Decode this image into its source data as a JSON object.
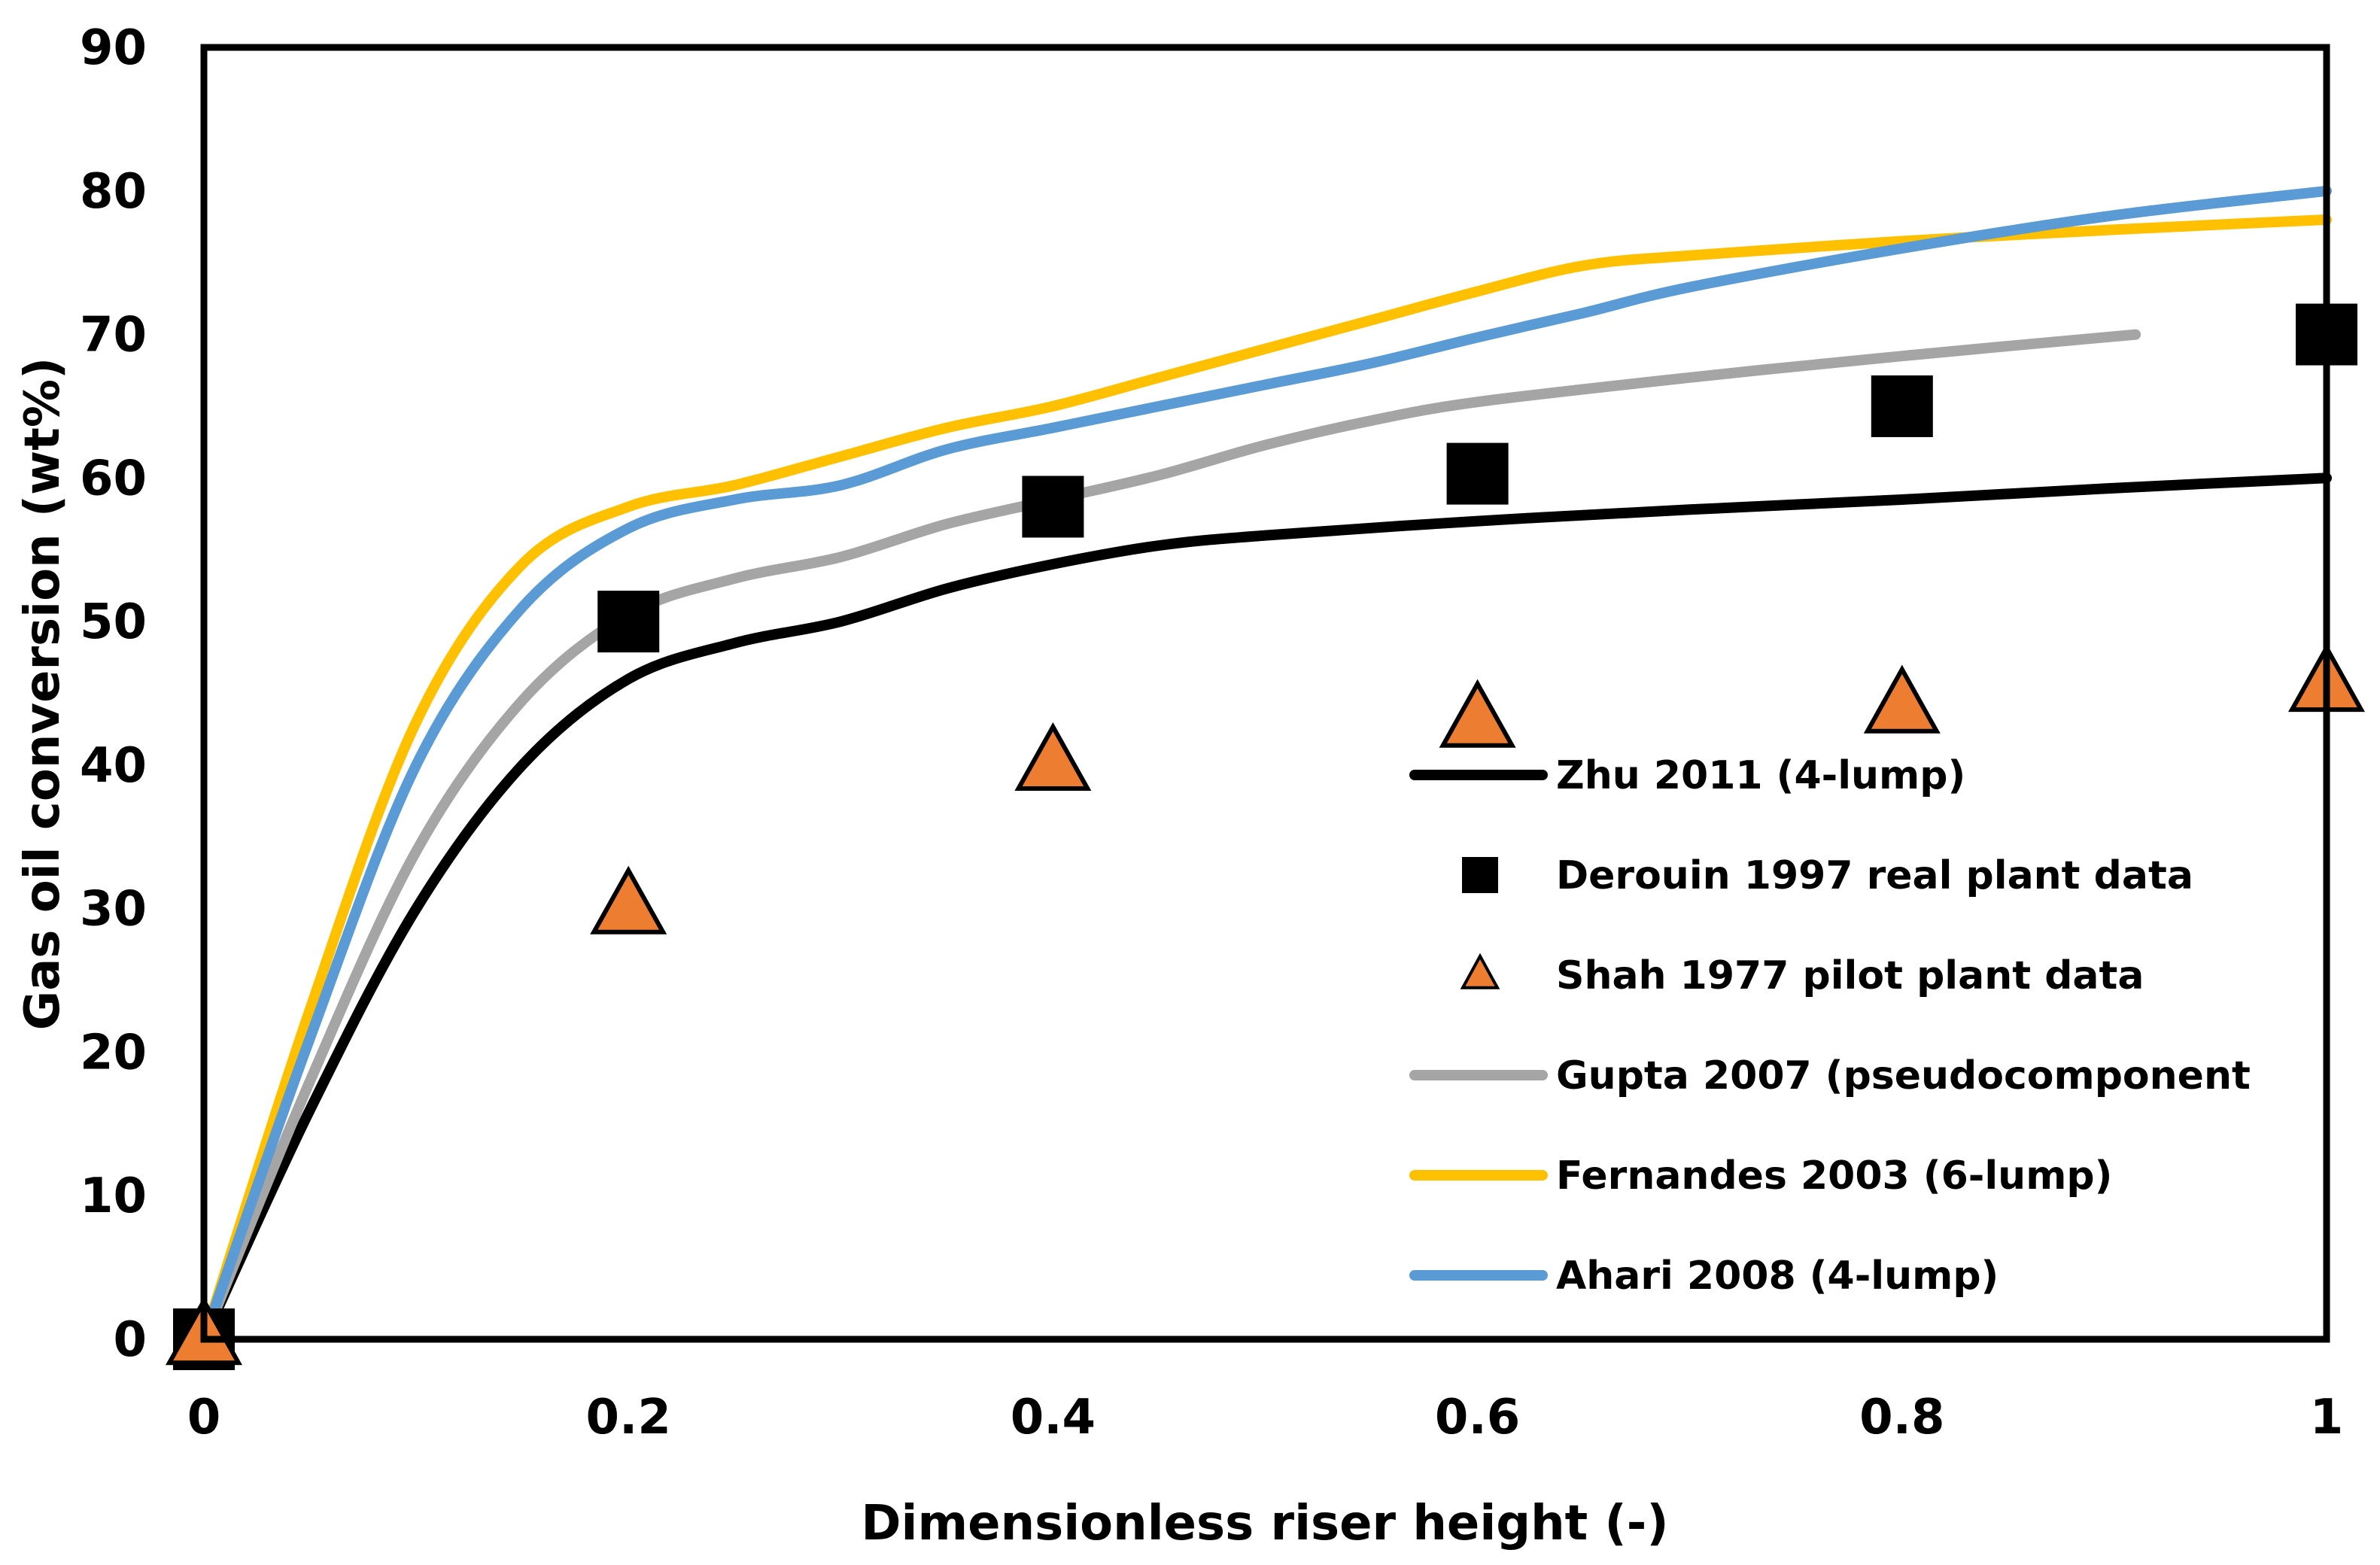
{
  "chart_data": {
    "type": "line",
    "xlabel": "Dimensionless riser height (-)",
    "ylabel": "Gas oil conversion (wt%)",
    "xlim": [
      0,
      1
    ],
    "ylim": [
      0,
      90
    ],
    "xticks": [
      0,
      0.2,
      0.4,
      0.6,
      0.8,
      1
    ],
    "xtick_labels": [
      "0",
      "0.2",
      "0.4",
      "0.6",
      "0.8",
      "1"
    ],
    "yticks": [
      0,
      10,
      20,
      30,
      40,
      50,
      60,
      70,
      80,
      90
    ],
    "ytick_labels": [
      "0",
      "10",
      "20",
      "30",
      "40",
      "50",
      "60",
      "70",
      "80",
      "90"
    ],
    "grid": false,
    "legend_position": "right-inside",
    "series": [
      {
        "name": "Zhu 2011 (4-lump)",
        "kind": "line",
        "color": "#000000",
        "x": [
          0,
          0.05,
          0.1,
          0.15,
          0.2,
          0.25,
          0.3,
          0.35,
          0.4,
          0.45,
          0.5,
          0.6,
          0.7,
          0.8,
          0.9,
          1.0
        ],
        "y": [
          0,
          16,
          30,
          40,
          46,
          48.5,
          50,
          52.3,
          54,
          55.3,
          56,
          57,
          57.8,
          58.5,
          59.3,
          60
        ]
      },
      {
        "name": "Derouin 1997 real plant data",
        "kind": "scatter",
        "marker": "square",
        "color": "#000000",
        "x": [
          0,
          0.2,
          0.4,
          0.6,
          0.8,
          1.0
        ],
        "y": [
          0,
          50,
          58,
          60.3,
          65,
          70
        ]
      },
      {
        "name": "Shah 1977 pilot plant data",
        "kind": "scatter",
        "marker": "triangle",
        "color": "#ED7D31",
        "x": [
          0,
          0.2,
          0.4,
          0.6,
          0.8,
          1.0
        ],
        "y": [
          0,
          30,
          40,
          43,
          44,
          45.5
        ]
      },
      {
        "name": "Gupta 2007 (pseudocomponent",
        "kind": "line",
        "color": "#A5A5A5",
        "x": [
          0,
          0.05,
          0.1,
          0.15,
          0.2,
          0.25,
          0.3,
          0.35,
          0.4,
          0.45,
          0.5,
          0.55,
          0.6,
          0.7,
          0.8,
          0.91
        ],
        "y": [
          0,
          18,
          34,
          44.5,
          50.5,
          53,
          54.5,
          56.8,
          58.5,
          60.2,
          62.3,
          64,
          65.3,
          67,
          68.5,
          70
        ]
      },
      {
        "name": "Fernandes 2003 (6-lump)",
        "kind": "line",
        "color": "#FFC000",
        "x": [
          0,
          0.05,
          0.1,
          0.15,
          0.2,
          0.25,
          0.3,
          0.35,
          0.4,
          0.45,
          0.5,
          0.55,
          0.6,
          0.65,
          0.7,
          0.8,
          0.9,
          1.0
        ],
        "y": [
          0,
          23,
          43,
          54,
          58,
          59.5,
          61.5,
          63.5,
          65,
          67,
          69,
          71,
          73,
          74.8,
          75.5,
          76.5,
          77.3,
          78
        ]
      },
      {
        "name": "Ahari 2008 (4-lump)",
        "kind": "line",
        "color": "#5B9BD5",
        "x": [
          0,
          0.05,
          0.1,
          0.15,
          0.2,
          0.25,
          0.3,
          0.35,
          0.4,
          0.45,
          0.5,
          0.55,
          0.6,
          0.65,
          0.7,
          0.8,
          0.9,
          1.0
        ],
        "y": [
          0,
          21,
          40,
          51,
          56.5,
          58.5,
          59.5,
          62,
          63.5,
          65,
          66.5,
          68,
          69.8,
          71.5,
          73.3,
          76,
          78.3,
          80
        ]
      }
    ]
  }
}
